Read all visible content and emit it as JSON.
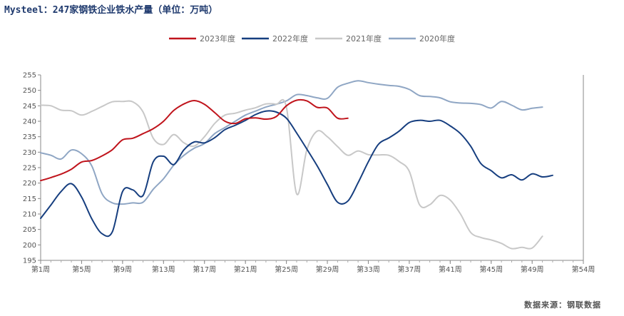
{
  "title": "Mysteel：247家钢铁企业铁水产量（单位：万吨）",
  "source": "数据来源：钢联数据",
  "chart_data": {
    "type": "line",
    "title": "Mysteel：247家钢铁企业铁水产量（单位：万吨）",
    "xlabel": "",
    "ylabel": "",
    "ylim": [
      195,
      255
    ],
    "yticks": [
      195,
      200,
      205,
      210,
      215,
      220,
      225,
      230,
      235,
      240,
      245,
      250,
      255
    ],
    "xlim": [
      1,
      54
    ],
    "xticks": [
      1,
      5,
      9,
      13,
      17,
      21,
      25,
      29,
      33,
      37,
      41,
      45,
      49,
      54
    ],
    "xtick_labels": [
      "第1周",
      "第5周",
      "第9周",
      "第13周",
      "第17周",
      "第21周",
      "第25周",
      "第29周",
      "第33周",
      "第37周",
      "第41周",
      "第45周",
      "第49周",
      "第54周"
    ],
    "legend_position": "top-center",
    "grid": false,
    "series": [
      {
        "name": "2023年度",
        "color": "#c0141c",
        "points": [
          [
            1,
            220.8
          ],
          [
            2,
            221.8
          ],
          [
            3,
            222.9
          ],
          [
            4,
            224.5
          ],
          [
            5,
            226.8
          ],
          [
            6,
            227.3
          ],
          [
            7,
            228.8
          ],
          [
            8,
            230.8
          ],
          [
            9,
            234.0
          ],
          [
            10,
            234.5
          ],
          [
            11,
            236.0
          ],
          [
            12,
            237.6
          ],
          [
            13,
            240.0
          ],
          [
            14,
            243.5
          ],
          [
            15,
            245.6
          ],
          [
            16,
            246.7
          ],
          [
            17,
            245.5
          ],
          [
            18,
            242.8
          ],
          [
            19,
            240.0
          ],
          [
            20,
            239.3
          ],
          [
            21,
            240.8
          ],
          [
            22,
            241.1
          ],
          [
            23,
            240.7
          ],
          [
            24,
            241.5
          ],
          [
            25,
            245.0
          ],
          [
            26,
            246.8
          ],
          [
            27,
            246.6
          ],
          [
            28,
            244.5
          ],
          [
            29,
            244.3
          ],
          [
            30,
            241.0
          ],
          [
            31,
            241.0
          ]
        ]
      },
      {
        "name": "2022年度",
        "color": "#163e7f",
        "points": [
          [
            1,
            208.6
          ],
          [
            2,
            212.9
          ],
          [
            3,
            217.3
          ],
          [
            4,
            219.8
          ],
          [
            5,
            215.5
          ],
          [
            6,
            208.4
          ],
          [
            7,
            203.6
          ],
          [
            8,
            204.2
          ],
          [
            9,
            217.3
          ],
          [
            10,
            217.8
          ],
          [
            11,
            216.0
          ],
          [
            12,
            226.9
          ],
          [
            13,
            228.7
          ],
          [
            14,
            226.0
          ],
          [
            15,
            230.8
          ],
          [
            16,
            233.3
          ],
          [
            17,
            233.0
          ],
          [
            18,
            234.7
          ],
          [
            19,
            237.3
          ],
          [
            20,
            238.7
          ],
          [
            21,
            240.3
          ],
          [
            22,
            242.2
          ],
          [
            23,
            243.3
          ],
          [
            24,
            243.0
          ],
          [
            25,
            241.0
          ],
          [
            26,
            236.2
          ],
          [
            27,
            231.0
          ],
          [
            28,
            225.6
          ],
          [
            29,
            219.6
          ],
          [
            30,
            213.8
          ],
          [
            31,
            214.2
          ],
          [
            32,
            220.1
          ],
          [
            33,
            226.9
          ],
          [
            34,
            232.6
          ],
          [
            35,
            234.6
          ],
          [
            36,
            236.8
          ],
          [
            37,
            239.6
          ],
          [
            38,
            240.3
          ],
          [
            39,
            240.0
          ],
          [
            40,
            240.3
          ],
          [
            41,
            238.5
          ],
          [
            42,
            236.0
          ],
          [
            43,
            231.9
          ],
          [
            44,
            226.3
          ],
          [
            45,
            224.0
          ],
          [
            46,
            221.7
          ],
          [
            47,
            222.7
          ],
          [
            48,
            221.0
          ],
          [
            49,
            223.0
          ],
          [
            50,
            222.0
          ],
          [
            51,
            222.5
          ]
        ]
      },
      {
        "name": "2021年度",
        "color": "#c8c8c8",
        "points": [
          [
            1,
            245.2
          ],
          [
            2,
            245.0
          ],
          [
            3,
            243.6
          ],
          [
            4,
            243.4
          ],
          [
            5,
            242.0
          ],
          [
            6,
            243.2
          ],
          [
            7,
            244.8
          ],
          [
            8,
            246.3
          ],
          [
            9,
            246.4
          ],
          [
            10,
            246.3
          ],
          [
            11,
            243.0
          ],
          [
            12,
            234.5
          ],
          [
            13,
            232.5
          ],
          [
            14,
            235.7
          ],
          [
            15,
            233.0
          ],
          [
            16,
            232.0
          ],
          [
            17,
            235.0
          ],
          [
            18,
            239.3
          ],
          [
            19,
            242.0
          ],
          [
            20,
            242.6
          ],
          [
            21,
            243.6
          ],
          [
            22,
            244.4
          ],
          [
            23,
            245.6
          ],
          [
            24,
            245.5
          ],
          [
            25,
            244.6
          ],
          [
            26,
            216.5
          ],
          [
            27,
            230.8
          ],
          [
            28,
            236.8
          ],
          [
            29,
            235.0
          ],
          [
            30,
            231.8
          ],
          [
            31,
            229.0
          ],
          [
            32,
            230.4
          ],
          [
            33,
            229.2
          ],
          [
            34,
            229.1
          ],
          [
            35,
            229.0
          ],
          [
            36,
            227.0
          ],
          [
            37,
            223.8
          ],
          [
            38,
            213.0
          ],
          [
            39,
            213.0
          ],
          [
            40,
            216.0
          ],
          [
            41,
            214.5
          ],
          [
            42,
            210.0
          ],
          [
            43,
            204.0
          ],
          [
            44,
            202.4
          ],
          [
            45,
            201.6
          ],
          [
            46,
            200.5
          ],
          [
            47,
            198.8
          ],
          [
            48,
            199.2
          ],
          [
            49,
            199.0
          ],
          [
            50,
            202.8
          ]
        ]
      },
      {
        "name": "2020年度",
        "color": "#8fa6c4",
        "points": [
          [
            1,
            229.8
          ],
          [
            2,
            229.0
          ],
          [
            3,
            227.8
          ],
          [
            4,
            230.7
          ],
          [
            5,
            229.5
          ],
          [
            6,
            225.5
          ],
          [
            7,
            216.5
          ],
          [
            8,
            213.6
          ],
          [
            9,
            213.2
          ],
          [
            10,
            213.6
          ],
          [
            11,
            213.8
          ],
          [
            12,
            218.0
          ],
          [
            13,
            221.4
          ],
          [
            14,
            225.8
          ],
          [
            15,
            229.0
          ],
          [
            16,
            231.3
          ],
          [
            17,
            232.8
          ],
          [
            18,
            236.0
          ],
          [
            19,
            238.0
          ],
          [
            20,
            240.0
          ],
          [
            21,
            242.0
          ],
          [
            22,
            243.3
          ],
          [
            23,
            244.6
          ],
          [
            24,
            245.5
          ],
          [
            25,
            246.6
          ],
          [
            26,
            248.6
          ],
          [
            27,
            248.3
          ],
          [
            28,
            247.6
          ],
          [
            29,
            247.4
          ],
          [
            30,
            251.0
          ],
          [
            31,
            252.3
          ],
          [
            32,
            253.1
          ],
          [
            33,
            252.5
          ],
          [
            34,
            252.0
          ],
          [
            35,
            251.6
          ],
          [
            36,
            251.3
          ],
          [
            37,
            250.3
          ],
          [
            38,
            248.3
          ],
          [
            39,
            248.0
          ],
          [
            40,
            247.6
          ],
          [
            41,
            246.3
          ],
          [
            42,
            245.9
          ],
          [
            43,
            245.8
          ],
          [
            44,
            245.4
          ],
          [
            45,
            244.3
          ],
          [
            46,
            246.4
          ],
          [
            47,
            245.2
          ],
          [
            48,
            243.7
          ],
          [
            49,
            244.2
          ],
          [
            50,
            244.6
          ]
        ]
      }
    ]
  }
}
